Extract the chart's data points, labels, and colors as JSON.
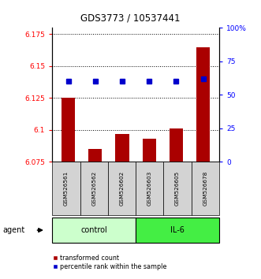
{
  "title": "GDS3773 / 10537441",
  "samples": [
    "GSM526561",
    "GSM526562",
    "GSM526602",
    "GSM526603",
    "GSM526605",
    "GSM526678"
  ],
  "bar_values": [
    6.125,
    6.085,
    6.097,
    6.093,
    6.101,
    6.165
  ],
  "percentile_values": [
    60,
    60,
    60,
    60,
    60,
    62
  ],
  "ylim_left": [
    6.075,
    6.18
  ],
  "ylim_right": [
    0,
    100
  ],
  "yticks_left": [
    6.075,
    6.1,
    6.125,
    6.15,
    6.175
  ],
  "yticks_right": [
    0,
    25,
    50,
    75,
    100
  ],
  "ytick_labels_left": [
    "6.075",
    "6.1",
    "6.125",
    "6.15",
    "6.175"
  ],
  "ytick_labels_right": [
    "0",
    "25",
    "50",
    "75",
    "100%"
  ],
  "bar_color": "#aa0000",
  "dot_color": "#0000cc",
  "bar_bottom": 6.075,
  "groups": [
    {
      "label": "control",
      "indices": [
        0,
        1,
        2
      ],
      "color": "#ccffcc"
    },
    {
      "label": "IL-6",
      "indices": [
        3,
        4,
        5
      ],
      "color": "#44ee44"
    }
  ],
  "agent_label": "agent",
  "legend_bar_label": "transformed count",
  "legend_dot_label": "percentile rank within the sample",
  "background_color": "#ffffff"
}
